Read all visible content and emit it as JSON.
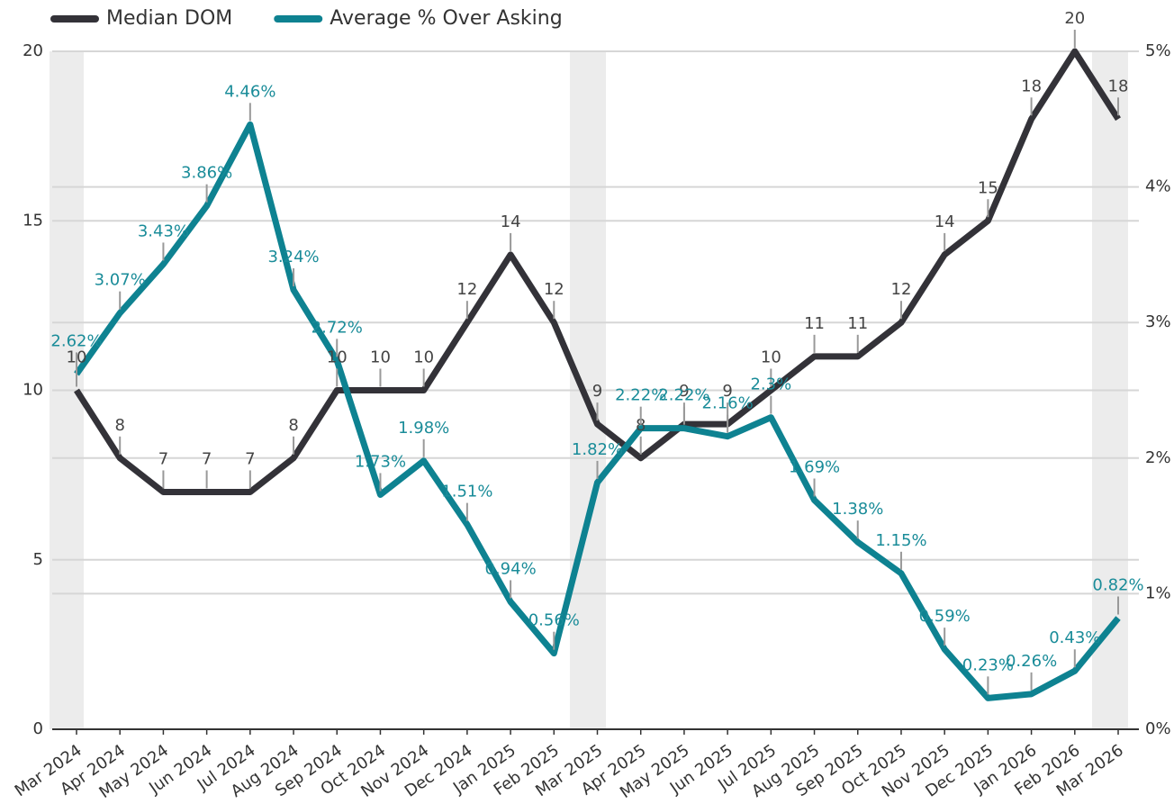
{
  "chart_data": {
    "type": "line",
    "categories": [
      "Mar 2024",
      "Apr 2024",
      "May 2024",
      "Jun 2024",
      "Jul 2024",
      "Aug 2024",
      "Sep 2024",
      "Oct 2024",
      "Nov 2024",
      "Dec 2024",
      "Jan 2025",
      "Feb 2025",
      "Mar 2025",
      "Apr 2025",
      "May 2025",
      "Jun 2025",
      "Jul 2025",
      "Aug 2025",
      "Sep 2025",
      "Oct 2025",
      "Nov 2025",
      "Dec 2025",
      "Jan 2026",
      "Feb 2026",
      "Mar 2026"
    ],
    "series": [
      {
        "name": "Median DOM",
        "color": "#333238",
        "label_color": "#444444",
        "values": [
          10,
          8,
          7,
          7,
          7,
          8,
          10,
          10,
          10,
          12,
          14,
          12,
          9,
          8,
          9,
          9,
          10,
          11,
          11,
          12,
          14,
          15,
          18,
          20,
          18
        ]
      },
      {
        "name": "Average % Over Asking",
        "color": "#0e8291",
        "label_color": "#1a8c99",
        "axis": "y2",
        "values": [
          2.62,
          3.07,
          3.43,
          3.86,
          4.46,
          3.24,
          2.72,
          1.73,
          1.98,
          1.51,
          0.94,
          0.56,
          1.82,
          2.22,
          2.22,
          2.16,
          2.3,
          1.69,
          1.38,
          1.15,
          0.59,
          0.23,
          0.26,
          0.43,
          0.82
        ],
        "value_labels": [
          "2.62%",
          "3.07%",
          "3.43%",
          "3.86%",
          "4.46%",
          "3.24%",
          "2.72%",
          "1.73%",
          "1.98%",
          "1.51%",
          "0.94%",
          "0.56%",
          "1.82%",
          "2.22%",
          "2.22%",
          "2.16%",
          "2.3%",
          "1.69%",
          "1.38%",
          "1.15%",
          "0.59%",
          "0.23%",
          "0.26%",
          "0.43%",
          "0.82%"
        ]
      }
    ],
    "ylim": [
      0,
      20
    ],
    "yticks": [
      0,
      5,
      10,
      15,
      20
    ],
    "y2lim": [
      0,
      5
    ],
    "y2ticks": [
      {
        "value": 0,
        "label": "0%"
      },
      {
        "value": 1,
        "label": "1%"
      },
      {
        "value": 2,
        "label": "2%"
      },
      {
        "value": 3,
        "label": "3%"
      },
      {
        "value": 4,
        "label": "4%"
      },
      {
        "value": 5,
        "label": "5%"
      }
    ],
    "grid": true,
    "legend": "top-left"
  }
}
